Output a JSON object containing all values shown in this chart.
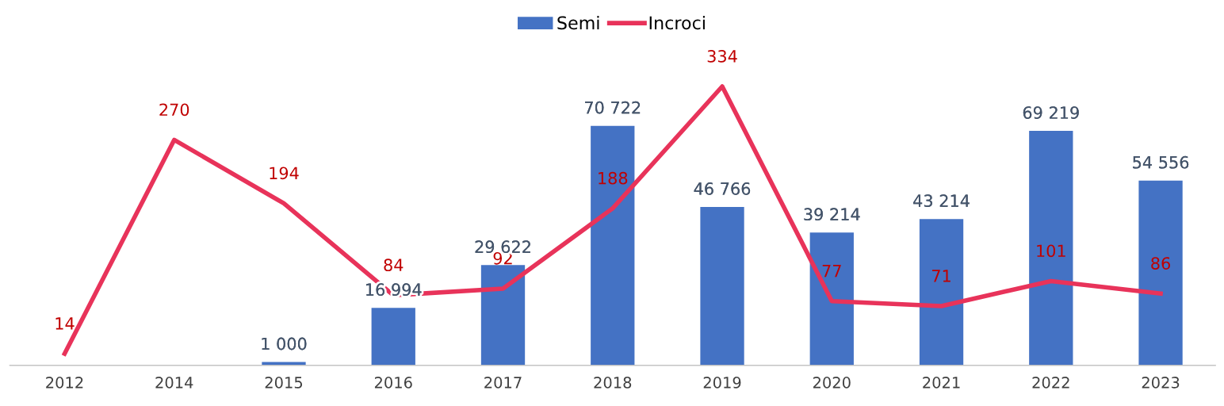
{
  "chart_data": {
    "type": "bar",
    "categories": [
      "2012",
      "2014",
      "2015",
      "2016",
      "2017",
      "2018",
      "2019",
      "2020",
      "2021",
      "2022",
      "2023"
    ],
    "series": [
      {
        "name": "Semi",
        "color": "#4472c4",
        "values": [
          null,
          null,
          1000,
          16994,
          29622,
          70722,
          46766,
          39214,
          43214,
          69219,
          54556
        ],
        "value_labels": [
          null,
          null,
          "1 000",
          "16 994",
          "29 622",
          "70 722",
          "46 766",
          "39 214",
          "43 214",
          "69 219",
          "54 556"
        ]
      },
      {
        "name": "Incroci",
        "type": "line",
        "axis": "y2",
        "color": "#e8335a",
        "values": [
          14,
          270,
          194,
          84,
          92,
          188,
          334,
          77,
          71,
          101,
          86
        ]
      }
    ],
    "data_labels": true,
    "legend": "top",
    "grid": false,
    "tick_labels": "x",
    "marker": "none"
  }
}
